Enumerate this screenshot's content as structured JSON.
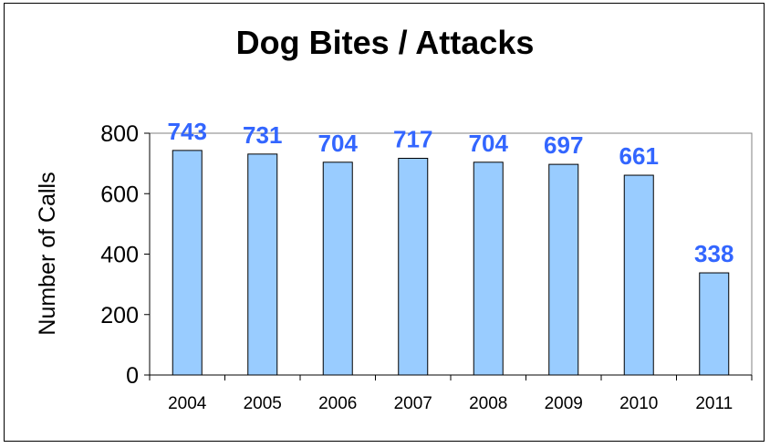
{
  "chart_data": {
    "type": "bar",
    "title": "Dog Bites / Attacks",
    "xlabel": "",
    "ylabel": "Number of Calls",
    "categories": [
      "2004",
      "2005",
      "2006",
      "2007",
      "2008",
      "2009",
      "2010",
      "2011"
    ],
    "values": [
      743,
      731,
      704,
      717,
      704,
      697,
      661,
      338
    ],
    "ylim": [
      0,
      800
    ],
    "yticks": [
      0,
      200,
      400,
      600,
      800
    ],
    "grid": false,
    "legend": "none",
    "colors": {
      "bar_fill": "#99ccff",
      "bar_stroke": "#000000",
      "data_label": "#3366ff",
      "plot_border": "#808080"
    }
  }
}
